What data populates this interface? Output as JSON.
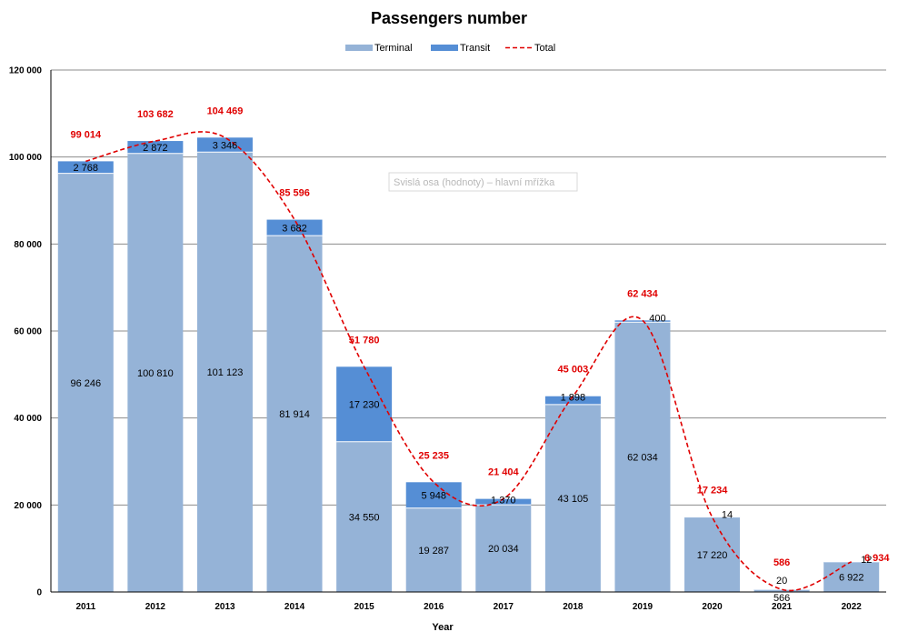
{
  "chart_data": {
    "type": "bar",
    "stacked": true,
    "title": "Passengers number",
    "xlabel": "Year",
    "ylabel": "",
    "ylim": [
      0,
      120000
    ],
    "yticks": [
      0,
      20000,
      40000,
      60000,
      80000,
      100000,
      120000
    ],
    "ytick_labels": [
      "0",
      "20 000",
      "40 000",
      "60 000",
      "80 000",
      "100 000",
      "120 000"
    ],
    "grid": "horizontal",
    "legend_position": "top",
    "categories": [
      "2011",
      "2012",
      "2013",
      "2014",
      "2015",
      "2016",
      "2017",
      "2018",
      "2019",
      "2020",
      "2021",
      "2022"
    ],
    "series": [
      {
        "name": "Terminal",
        "kind": "bar",
        "color": "#95b3d7",
        "values": [
          96246,
          100810,
          101123,
          81914,
          34550,
          19287,
          20034,
          43105,
          62034,
          17220,
          566,
          6922
        ],
        "labels": [
          "96 246",
          "100 810",
          "101 123",
          "81 914",
          "34 550",
          "19 287",
          "20 034",
          "43 105",
          "62 034",
          "17 220",
          "566",
          "6 922"
        ]
      },
      {
        "name": "Transit",
        "kind": "bar",
        "color": "#558ed5",
        "values": [
          2768,
          2872,
          3346,
          3682,
          17230,
          5948,
          1370,
          1898,
          400,
          14,
          20,
          12
        ],
        "labels": [
          "2 768",
          "2 872",
          "3 346",
          "3 682",
          "17 230",
          "5 948",
          "1 370",
          "1 898",
          "400",
          "14",
          "20",
          "12"
        ]
      },
      {
        "name": "Total",
        "kind": "line",
        "style": "dashed",
        "smooth": true,
        "color": "#e00000",
        "values": [
          99014,
          103682,
          104469,
          85596,
          51780,
          25235,
          21404,
          45003,
          62434,
          17234,
          586,
          6934
        ],
        "labels": [
          "99 014",
          "103 682",
          "104 469",
          "85 596",
          "51 780",
          "25 235",
          "21 404",
          "45 003",
          "62 434",
          "17 234",
          "586",
          "6 934"
        ]
      }
    ],
    "annotation": "Svislá osa (hodnoty)   – hlavní mřížka"
  }
}
